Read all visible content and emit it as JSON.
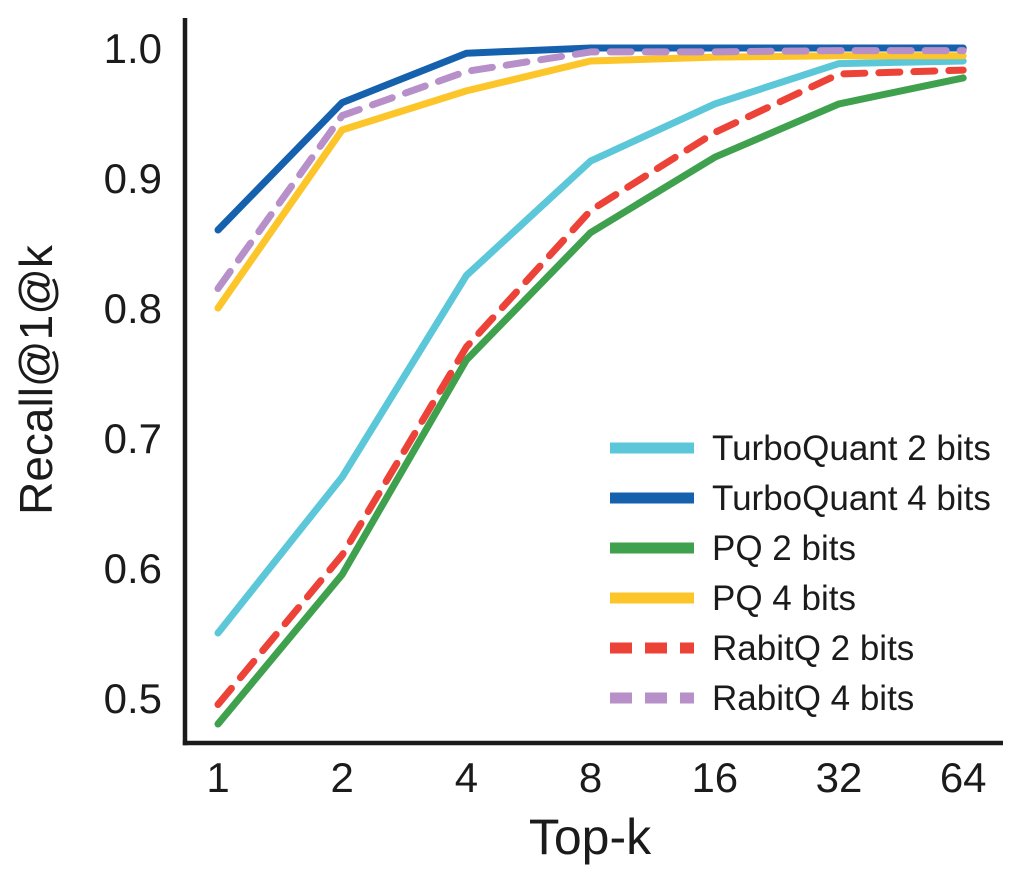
{
  "chart_data": {
    "type": "line",
    "title": "",
    "xlabel": "Top-k",
    "ylabel": "Recall@1@k",
    "x": [
      1,
      2,
      4,
      8,
      16,
      32,
      64
    ],
    "x_scale": "log2",
    "x_tick_labels": [
      "1",
      "2",
      "4",
      "8",
      "16",
      "32",
      "64"
    ],
    "y_ticks": [
      1.0,
      0.9,
      0.8,
      0.7,
      0.6,
      0.5
    ],
    "y_tick_labels": [
      "1.0",
      "0.9",
      "0.8",
      "0.7",
      "0.6",
      "0.5"
    ],
    "ylim": [
      0.464,
      1.026
    ],
    "grid": false,
    "legend_position": "lower-right-inside",
    "axis_color": "#1b1b1b",
    "background_color": "#ffffff",
    "series": [
      {
        "name": "TurboQuant 2 bits",
        "color": "#5BC7D8",
        "style": "solid",
        "values": [
          0.55,
          0.67,
          0.825,
          0.913,
          0.957,
          0.988,
          0.99
        ]
      },
      {
        "name": "TurboQuant 4 bits",
        "color": "#1661AE",
        "style": "solid",
        "values": [
          0.86,
          0.958,
          0.996,
          1.0,
          1.0,
          1.0,
          1.0
        ]
      },
      {
        "name": "PQ 2 bits",
        "color": "#3FA14D",
        "style": "solid",
        "values": [
          0.48,
          0.595,
          0.76,
          0.858,
          0.916,
          0.957,
          0.977
        ]
      },
      {
        "name": "PQ 4 bits",
        "color": "#FCC62B",
        "style": "solid",
        "values": [
          0.8,
          0.937,
          0.967,
          0.99,
          0.993,
          0.994,
          0.994
        ]
      },
      {
        "name": "RabitQ 2 bits",
        "color": "#EC4237",
        "style": "dashed",
        "values": [
          0.495,
          0.61,
          0.77,
          0.875,
          0.935,
          0.98,
          0.983
        ]
      },
      {
        "name": "RabitQ 4 bits",
        "color": "#B78FC9",
        "style": "dashed",
        "values": [
          0.815,
          0.948,
          0.982,
          0.997,
          0.997,
          0.998,
          0.998
        ]
      }
    ],
    "paint_order": [
      0,
      3,
      2,
      1,
      4,
      5
    ]
  }
}
